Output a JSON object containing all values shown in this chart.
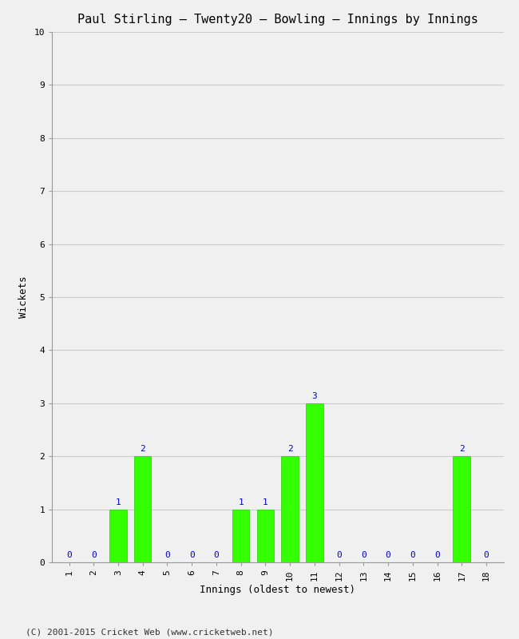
{
  "title": "Paul Stirling – Twenty20 – Bowling – Innings by Innings",
  "xlabel": "Innings (oldest to newest)",
  "ylabel": "Wickets",
  "categories": [
    "1",
    "2",
    "3",
    "4",
    "5",
    "6",
    "7",
    "8",
    "9",
    "10",
    "11",
    "12",
    "13",
    "14",
    "15",
    "16",
    "17",
    "18"
  ],
  "values": [
    0,
    0,
    1,
    2,
    0,
    0,
    0,
    1,
    1,
    2,
    3,
    0,
    0,
    0,
    0,
    0,
    2,
    0
  ],
  "bar_color": "#33ff00",
  "bar_edge_color": "#22cc00",
  "label_color": "#0000cc",
  "ylim": [
    0,
    10
  ],
  "yticks": [
    0,
    1,
    2,
    3,
    4,
    5,
    6,
    7,
    8,
    9,
    10
  ],
  "background_color": "#f0f0f0",
  "grid_color": "#cccccc",
  "footer": "(C) 2001-2015 Cricket Web (www.cricketweb.net)",
  "title_fontsize": 11,
  "axis_label_fontsize": 9,
  "tick_fontsize": 8,
  "bar_label_fontsize": 8,
  "footer_fontsize": 8
}
